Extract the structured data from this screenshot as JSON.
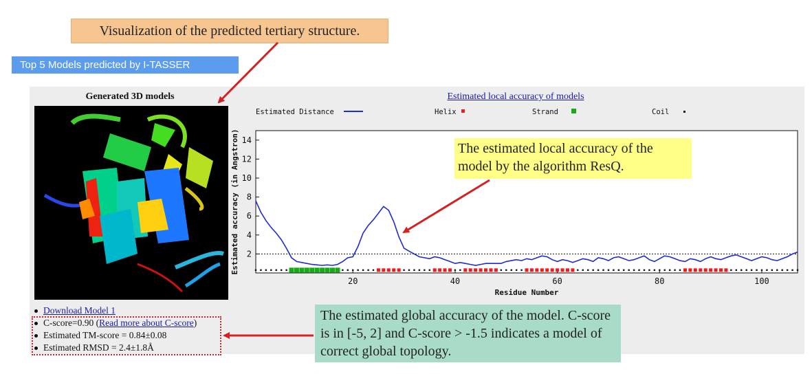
{
  "annotations": {
    "structure_note": "Visualization of the predicted tertiary structure.",
    "local_accuracy_note": "The estimated local accuracy of the model by the algorithm ResQ.",
    "global_accuracy_note": "The estimated global accuracy of the model. C-score is in [-5, 2] and C-score > -1.5 indicates a model of correct global topology."
  },
  "header": {
    "title": "Top 5 Models predicted by I-TASSER"
  },
  "models": {
    "title": "Generated 3D models",
    "download_link": "Download Model 1",
    "cscore_label": "C-score=0.90",
    "cscore_link": "Read more about C-score",
    "tm_score": "Estimated TM-score = 0.84±0.08",
    "rmsd": "Estimated RMSD = 2.4±1.8Å"
  },
  "plot": {
    "title": "Estimated local accuracy of models",
    "legend": [
      "Estimated Distance",
      "Helix",
      "Strand",
      "Coil"
    ]
  },
  "colors": {
    "line": "#1f2bd1",
    "helix": "#ee1c1c",
    "strand": "#16aa16",
    "coil": "#111111",
    "arrow": "#d32222"
  },
  "chart_data": {
    "type": "line",
    "xlabel": "Residue Number",
    "ylabel": "Estimated accuracy (in Angstron)",
    "xlim": [
      1,
      107
    ],
    "ylim": [
      0,
      15
    ],
    "xticks": [
      20,
      40,
      60,
      80,
      100
    ],
    "yticks": [
      2,
      4,
      6,
      8,
      10,
      12,
      14
    ],
    "threshold": 2,
    "series": [
      {
        "name": "Estimated Distance",
        "x": [
          1,
          2,
          3,
          4,
          5,
          6,
          7,
          8,
          9,
          10,
          11,
          12,
          13,
          14,
          15,
          16,
          17,
          18,
          19,
          20,
          21,
          22,
          23,
          24,
          25,
          26,
          27,
          28,
          29,
          30,
          31,
          32,
          33,
          34,
          35,
          36,
          37,
          38,
          39,
          40,
          41,
          42,
          43,
          44,
          45,
          46,
          47,
          48,
          49,
          50,
          51,
          52,
          53,
          54,
          55,
          56,
          57,
          58,
          59,
          60,
          61,
          62,
          63,
          64,
          65,
          66,
          67,
          68,
          69,
          70,
          71,
          72,
          73,
          74,
          75,
          76,
          77,
          78,
          79,
          80,
          81,
          82,
          83,
          84,
          85,
          86,
          87,
          88,
          89,
          90,
          91,
          92,
          93,
          94,
          95,
          96,
          97,
          98,
          99,
          100,
          101,
          102,
          103,
          104,
          105,
          106,
          107
        ],
        "values": [
          7.6,
          6.4,
          5.5,
          4.8,
          4.2,
          3.5,
          2.6,
          1.6,
          1.2,
          1.1,
          1.0,
          0.9,
          0.85,
          0.8,
          0.85,
          0.8,
          0.9,
          1.2,
          1.6,
          1.7,
          2.8,
          4.2,
          5.0,
          5.6,
          6.3,
          7.0,
          6.6,
          5.4,
          3.8,
          2.6,
          2.3,
          2.0,
          1.7,
          1.6,
          1.5,
          1.7,
          1.6,
          1.4,
          1.2,
          1.0,
          1.1,
          1.0,
          0.9,
          0.8,
          0.9,
          1.0,
          1.0,
          1.0,
          1.0,
          1.2,
          1.3,
          1.4,
          1.3,
          1.5,
          1.4,
          1.6,
          1.8,
          1.7,
          1.4,
          1.2,
          1.4,
          1.3,
          1.1,
          1.3,
          1.5,
          1.4,
          1.2,
          1.6,
          1.5,
          1.3,
          1.6,
          1.7,
          1.5,
          1.3,
          1.4,
          1.6,
          1.8,
          1.4,
          1.2,
          1.5,
          1.8,
          1.7,
          1.5,
          1.3,
          1.2,
          1.5,
          1.4,
          1.2,
          1.5,
          1.7,
          1.5,
          1.4,
          1.6,
          1.8,
          1.9,
          1.7,
          1.5,
          1.3,
          1.5,
          1.7,
          1.6,
          1.4,
          1.3,
          1.5,
          1.7,
          2.0,
          2.2
        ]
      }
    ],
    "ss_symbols": [
      {
        "type": "coil",
        "from": 1,
        "to": 7
      },
      {
        "type": "strand",
        "from": 8,
        "to": 17
      },
      {
        "type": "coil",
        "from": 18,
        "to": 24
      },
      {
        "type": "helix",
        "from": 25,
        "to": 29
      },
      {
        "type": "coil",
        "from": 30,
        "to": 35
      },
      {
        "type": "helix",
        "from": 36,
        "to": 39
      },
      {
        "type": "coil",
        "from": 40,
        "to": 41
      },
      {
        "type": "helix",
        "from": 42,
        "to": 48
      },
      {
        "type": "coil",
        "from": 49,
        "to": 53
      },
      {
        "type": "helix",
        "from": 54,
        "to": 63
      },
      {
        "type": "coil",
        "from": 64,
        "to": 84
      },
      {
        "type": "helix",
        "from": 85,
        "to": 93
      },
      {
        "type": "coil",
        "from": 94,
        "to": 107
      }
    ]
  }
}
